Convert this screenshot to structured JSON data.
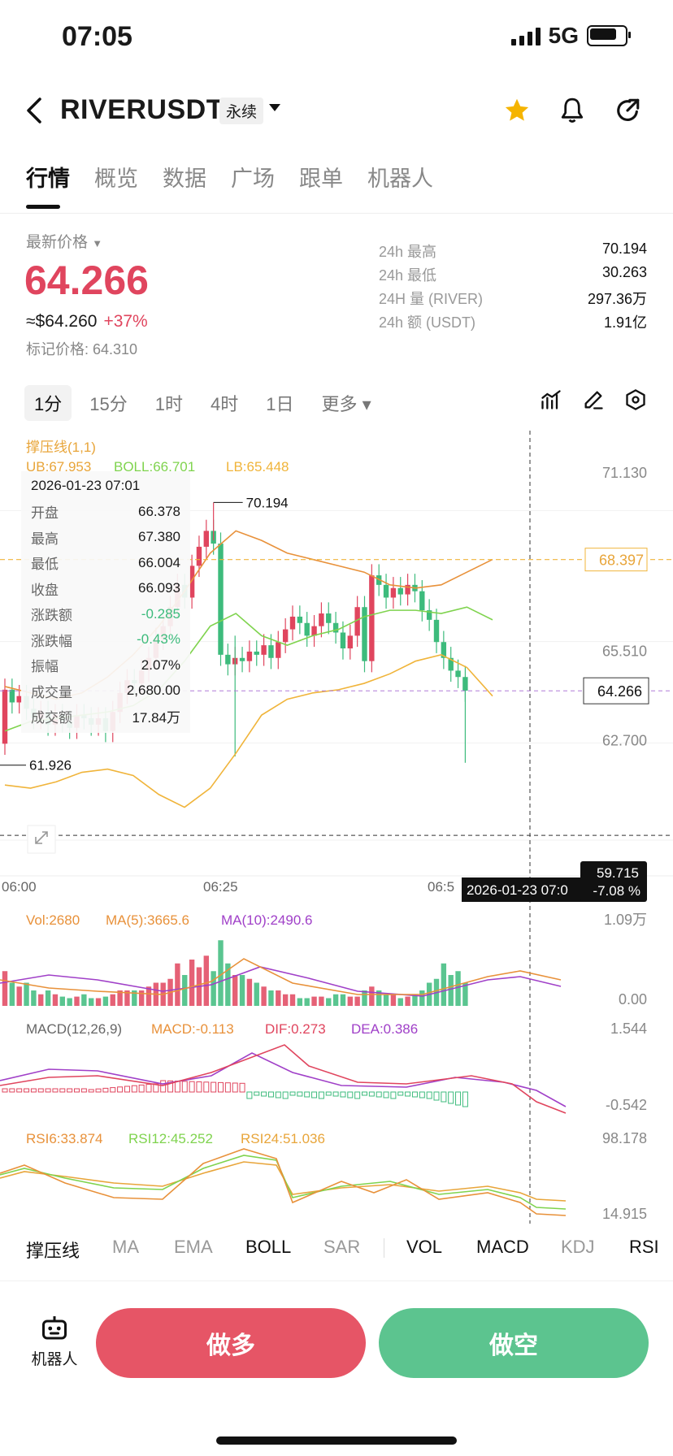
{
  "status": {
    "time": "07:05",
    "network": "5G"
  },
  "header": {
    "symbol": "RIVERUSDT",
    "contract_type": "永续"
  },
  "tabs": [
    "行情",
    "概览",
    "数据",
    "广场",
    "跟单",
    "机器人"
  ],
  "price": {
    "label": "最新价格",
    "last": "64.266",
    "usd": "≈$64.260",
    "change": "+37%",
    "mark": "标记价格: 64.310"
  },
  "stats": [
    {
      "k": "24h  最高",
      "v": "70.194"
    },
    {
      "k": "24h  最低",
      "v": "30.263"
    },
    {
      "k": "24H  量 (RIVER)",
      "v": "297.36万"
    },
    {
      "k": "24h  额 (USDT)",
      "v": "1.91亿"
    }
  ],
  "timeframes": [
    "1分",
    "15分",
    "1时",
    "4时",
    "1日",
    "更多"
  ],
  "selected_timeframe": "1分",
  "main_chart": {
    "indicator_title": "撑压线(1,1)",
    "boll_legend": {
      "ub": "UB:67.953",
      "boll": "BOLL:66.701",
      "lb": "LB:65.448"
    },
    "y_ticks": [
      "71.130",
      "68.397",
      "65.510",
      "64.266",
      "62.700",
      "59.715"
    ],
    "x_ticks": [
      "06:00",
      "06:25",
      "06:5"
    ],
    "high_marker": "70.194",
    "low_marker": "61.926",
    "crosshair_time": "2026-01-23 07:0",
    "crosshair_price": "59.715",
    "crosshair_pct": "-7.08 %",
    "resistance_price": "68.397",
    "last_price_tag": "64.266"
  },
  "info_card": {
    "date": "2026-01-23 07:01",
    "rows": [
      {
        "k": "开盘",
        "v": "66.378",
        "tone": "normal"
      },
      {
        "k": "最高",
        "v": "67.380",
        "tone": "normal"
      },
      {
        "k": "最低",
        "v": "66.004",
        "tone": "normal"
      },
      {
        "k": "收盘",
        "v": "66.093",
        "tone": "normal"
      },
      {
        "k": "涨跌额",
        "v": "-0.285",
        "tone": "green"
      },
      {
        "k": "涨跌幅",
        "v": "-0.43%",
        "tone": "green"
      },
      {
        "k": "振幅",
        "v": "2.07%",
        "tone": "normal"
      },
      {
        "k": "成交量",
        "v": "2,680.00",
        "tone": "normal"
      },
      {
        "k": "成交额",
        "v": "17.84万",
        "tone": "normal"
      }
    ]
  },
  "volume_panel": {
    "vol": "Vol:2680",
    "ma5": "MA(5):3665.6",
    "ma10": "MA(10):2490.6",
    "top": "1.09万",
    "bottom": "0.00"
  },
  "macd_panel": {
    "title": "MACD(12,26,9)",
    "macd": "MACD:-0.113",
    "dif": "DIF:0.273",
    "dea": "DEA:0.386",
    "top": "1.544",
    "bottom": "-0.542"
  },
  "rsi_panel": {
    "rsi6": "RSI6:33.874",
    "rsi12": "RSI12:45.252",
    "rsi24": "RSI24:51.036",
    "top": "98.178",
    "bottom": "14.915"
  },
  "indicator_bar": [
    {
      "label": "撑压线",
      "on": true
    },
    {
      "label": "MA",
      "on": false
    },
    {
      "label": "EMA",
      "on": false
    },
    {
      "label": "BOLL",
      "on": true
    },
    {
      "label": "SAR",
      "on": false
    },
    {
      "label": "VOL",
      "on": true
    },
    {
      "label": "MACD",
      "on": true
    },
    {
      "label": "KDJ",
      "on": false
    },
    {
      "label": "RSI",
      "on": true
    }
  ],
  "actions": {
    "robot": "机器人",
    "long": "做多",
    "short": "做空"
  },
  "colors": {
    "up": "#e0455e",
    "down": "#3dbb7c",
    "ub": "#e8913a",
    "boll_mid": "#7fd34e",
    "lb": "#f0b43a",
    "resistance": "#f0b43a"
  }
}
